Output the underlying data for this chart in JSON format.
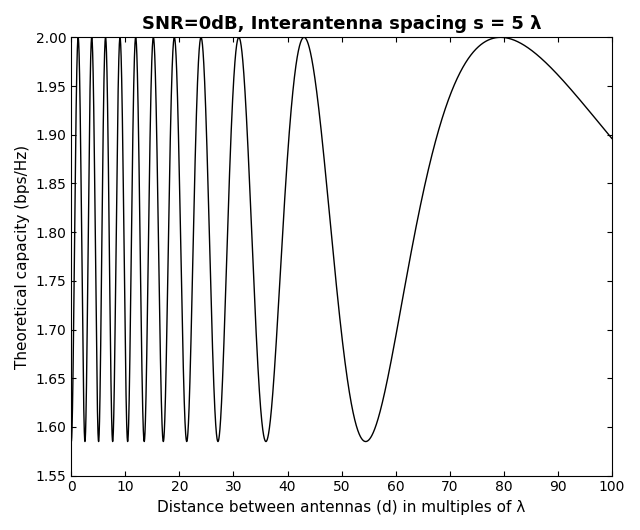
{
  "title": "SNR=0dB, Interantenna spacing s = 5 λ",
  "xlabel": "Distance between antennas (d) in multiples of λ",
  "ylabel": "Theoretical capacity (bps/Hz)",
  "xlim": [
    0,
    100
  ],
  "ylim": [
    1.55,
    2.0
  ],
  "snr_linear": 1.0,
  "s": 5.0,
  "N": 2,
  "R_lambda": 25.0,
  "d_start": 0.01,
  "d_end": 100.0,
  "n_points": 10000,
  "line_color": "#000000",
  "line_width": 1.0,
  "background_color": "#ffffff",
  "xticks": [
    0,
    10,
    20,
    30,
    40,
    50,
    60,
    70,
    80,
    90,
    100
  ],
  "yticks": [
    1.55,
    1.6,
    1.65,
    1.7,
    1.75,
    1.8,
    1.85,
    1.9,
    1.95,
    2.0
  ],
  "title_fontsize": 13,
  "label_fontsize": 11
}
